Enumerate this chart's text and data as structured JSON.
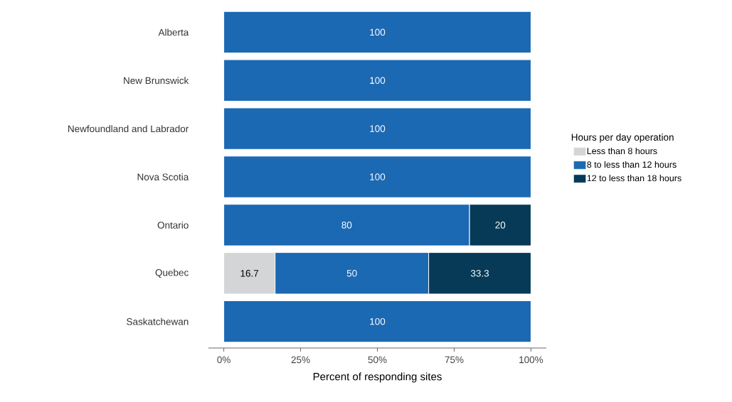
{
  "chart_data": {
    "type": "bar",
    "orientation": "horizontal",
    "stacked": true,
    "categories": [
      "Alberta",
      "New Brunswick",
      "Newfoundland and Labrador",
      "Nova Scotia",
      "Ontario",
      "Quebec",
      "Saskatchewan"
    ],
    "series": [
      {
        "name": "Less than 8 hours",
        "color": "#d3d5d6",
        "values": [
          null,
          null,
          null,
          null,
          null,
          16.7,
          null
        ]
      },
      {
        "name": "8 to less than 12 hours",
        "color": "#1b68b3",
        "values": [
          100,
          100,
          100,
          100,
          80,
          50,
          100
        ]
      },
      {
        "name": "12 to less than 18 hours",
        "color": "#063a57",
        "values": [
          null,
          null,
          null,
          null,
          20,
          33.3,
          null
        ]
      }
    ],
    "xlabel": "Percent of responding sites",
    "legend_title": "Hours per day operation",
    "xlim": [
      -5,
      105
    ],
    "xticks": [
      {
        "value": 0,
        "label": "0%"
      },
      {
        "value": 25,
        "label": "25%"
      },
      {
        "value": 50,
        "label": "50%"
      },
      {
        "value": 75,
        "label": "75%"
      },
      {
        "value": 100,
        "label": "100%"
      }
    ],
    "data_labels": true,
    "grid": false,
    "legend": "right"
  }
}
